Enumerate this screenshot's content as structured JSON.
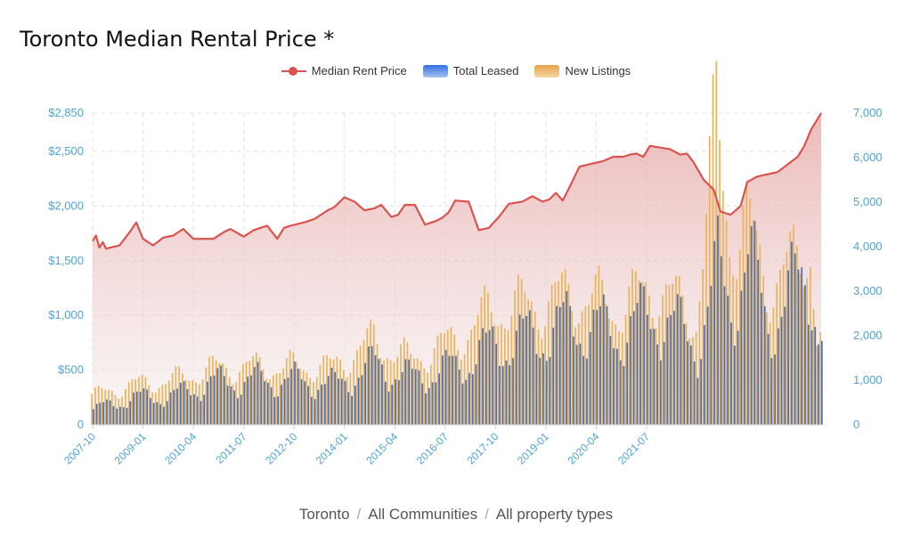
{
  "page": {
    "title": "Toronto Median Rental Price *"
  },
  "breadcrumb": {
    "city": "Toronto",
    "community": "All Communities",
    "property": "All property types",
    "separator": "/"
  },
  "legend": {
    "median": "Median Rent Price",
    "leased": "Total Leased",
    "listings": "New Listings"
  },
  "colors": {
    "median": "#d9534f",
    "leased": "#4a6fb5",
    "listings": "#e8b45f",
    "axis": "#4da3d6"
  },
  "chart_data": {
    "type": "bar+line",
    "title": "Toronto Median Rental Price *",
    "x_start": "2007-10",
    "x_tick_labels": [
      "2007-10",
      "2009-01",
      "2010-04",
      "2011-07",
      "2012-10",
      "2014-01",
      "2015-04",
      "2016-07",
      "2017-10",
      "2019-01",
      "2020-04",
      "2021-07"
    ],
    "y_left_ticks": [
      "0",
      "$500",
      "$1,000",
      "$1,500",
      "$2,000",
      "$2,500",
      "$2,850"
    ],
    "y_left_values": [
      0,
      500,
      1000,
      1500,
      2000,
      2500,
      2850
    ],
    "y_left_range": [
      0,
      2850
    ],
    "y_right_ticks": [
      "0",
      "1,000",
      "2,000",
      "3,000",
      "4,000",
      "5,000",
      "6,000",
      "7,000"
    ],
    "y_right_values": [
      0,
      1000,
      2000,
      3000,
      4000,
      5000,
      6000,
      7000
    ],
    "y_right_range": [
      0,
      7000
    ],
    "grid": true,
    "legend_position": "top-center",
    "series": [
      {
        "name": "Median Rent Price",
        "axis": "left",
        "anchors": [
          [
            0,
            1680
          ],
          [
            1,
            1730
          ],
          [
            2,
            1620
          ],
          [
            3,
            1670
          ],
          [
            4,
            1610
          ],
          [
            8,
            1640
          ],
          [
            11,
            1760
          ],
          [
            13,
            1850
          ],
          [
            15,
            1700
          ],
          [
            18,
            1640
          ],
          [
            21,
            1710
          ],
          [
            24,
            1730
          ],
          [
            27,
            1790
          ],
          [
            30,
            1700
          ],
          [
            33,
            1700
          ],
          [
            36,
            1700
          ],
          [
            39,
            1760
          ],
          [
            41,
            1790
          ],
          [
            45,
            1720
          ],
          [
            48,
            1780
          ],
          [
            52,
            1820
          ],
          [
            55,
            1700
          ],
          [
            57,
            1800
          ],
          [
            59,
            1820
          ],
          [
            63,
            1850
          ],
          [
            66,
            1880
          ],
          [
            70,
            1960
          ],
          [
            72,
            1990
          ],
          [
            75,
            2080
          ],
          [
            78,
            2040
          ],
          [
            81,
            1960
          ],
          [
            84,
            1980
          ],
          [
            86,
            2010
          ],
          [
            89,
            1900
          ],
          [
            91,
            1920
          ],
          [
            93,
            2010
          ],
          [
            96,
            2010
          ],
          [
            99,
            1830
          ],
          [
            102,
            1860
          ],
          [
            104,
            1890
          ],
          [
            106,
            1940
          ],
          [
            108,
            2050
          ],
          [
            112,
            2040
          ],
          [
            115,
            1780
          ],
          [
            118,
            1800
          ],
          [
            121,
            1900
          ],
          [
            124,
            2020
          ],
          [
            128,
            2040
          ],
          [
            131,
            2090
          ],
          [
            134,
            2040
          ],
          [
            136,
            2060
          ],
          [
            138,
            2120
          ],
          [
            140,
            2050
          ],
          [
            142,
            2170
          ],
          [
            145,
            2360
          ],
          [
            149,
            2390
          ],
          [
            152,
            2410
          ],
          [
            155,
            2450
          ],
          [
            158,
            2450
          ],
          [
            160,
            2470
          ],
          [
            162,
            2480
          ],
          [
            164,
            2450
          ],
          [
            166,
            2550
          ],
          [
            168,
            2540
          ],
          [
            170,
            2530
          ],
          [
            172,
            2520
          ],
          [
            175,
            2470
          ],
          [
            177,
            2480
          ],
          [
            179,
            2400
          ],
          [
            182,
            2240
          ],
          [
            185,
            2150
          ],
          [
            187,
            1950
          ],
          [
            190,
            1920
          ],
          [
            193,
            2000
          ],
          [
            195,
            2220
          ],
          [
            198,
            2270
          ],
          [
            201,
            2290
          ],
          [
            204,
            2310
          ],
          [
            207,
            2380
          ],
          [
            210,
            2450
          ],
          [
            212,
            2550
          ],
          [
            214,
            2700
          ],
          [
            217,
            2850
          ]
        ]
      },
      {
        "name": "Total Leased",
        "axis": "right",
        "anchors": [
          [
            0,
            350
          ],
          [
            12,
            600
          ],
          [
            24,
            650
          ],
          [
            35,
            950
          ],
          [
            48,
            1000
          ],
          [
            60,
            1000
          ],
          [
            72,
            900
          ],
          [
            84,
            1350
          ],
          [
            95,
            1050
          ],
          [
            108,
            1300
          ],
          [
            120,
            1800
          ],
          [
            132,
            2000
          ],
          [
            144,
            2300
          ],
          [
            156,
            2050
          ],
          [
            168,
            2500
          ],
          [
            180,
            1800
          ],
          [
            186,
            3350
          ],
          [
            190,
            2800
          ],
          [
            195,
            3700
          ],
          [
            201,
            2300
          ],
          [
            210,
            3100
          ],
          [
            214,
            3400
          ],
          [
            216,
            2100
          ]
        ]
      },
      {
        "name": "New Listings",
        "axis": "right",
        "anchors": [
          [
            0,
            650
          ],
          [
            12,
            900
          ],
          [
            24,
            1000
          ],
          [
            35,
            1250
          ],
          [
            48,
            1300
          ],
          [
            60,
            1300
          ],
          [
            72,
            1300
          ],
          [
            84,
            1900
          ],
          [
            95,
            1450
          ],
          [
            108,
            1900
          ],
          [
            120,
            2600
          ],
          [
            132,
            2700
          ],
          [
            144,
            2950
          ],
          [
            156,
            2600
          ],
          [
            168,
            3100
          ],
          [
            180,
            2400
          ],
          [
            186,
            6800
          ],
          [
            190,
            4300
          ],
          [
            195,
            4500
          ],
          [
            201,
            3200
          ],
          [
            210,
            3600
          ],
          [
            214,
            4100
          ],
          [
            216,
            2050
          ]
        ]
      }
    ]
  }
}
